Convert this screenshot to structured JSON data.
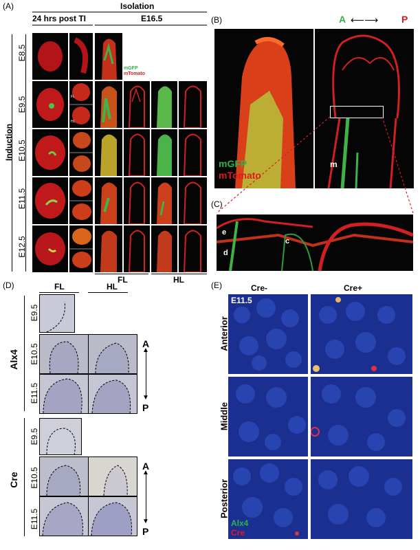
{
  "panels": {
    "A": {
      "label": "(A)",
      "isolation": "Isolation",
      "col_24hrs": "24 hrs post TI",
      "col_e165": "E16.5",
      "induction": "Induction",
      "rows": [
        "E8.5",
        "E9.5",
        "E10.5",
        "E11.5",
        "E12.5"
      ],
      "legend": {
        "mgfp": "mGFP",
        "mtomato": "mTomato"
      },
      "inset_labels": {
        "fl": "FL",
        "hl": "HL"
      },
      "bottom": {
        "fl": "FL",
        "hl": "HL"
      }
    },
    "B": {
      "label": "(B)",
      "axis_a": "A",
      "axis_p": "P",
      "legend": {
        "mgfp": "mGFP",
        "mtomato": "mTomato"
      },
      "annot_m": "m"
    },
    "C": {
      "label": "(C)",
      "annot_e": "e",
      "annot_d": "d",
      "annot_c": "c"
    },
    "D": {
      "label": "(D)",
      "col_fl": "FL",
      "col_hl": "HL",
      "gene_alx4": "Alx4",
      "gene_cre": "Cre",
      "rows_alx4": [
        "E9.5",
        "E10.5",
        "E11.5"
      ],
      "rows_cre": [
        "E9.5",
        "E10.5",
        "E11.5"
      ],
      "axis_a": "A",
      "axis_p": "P"
    },
    "E": {
      "label": "(E)",
      "col_minus": "Cre-",
      "col_plus": "Cre+",
      "stage": "E11.5",
      "rows": [
        "Anterior",
        "Middle",
        "Posterior"
      ],
      "legend": {
        "alx4": "Alx4",
        "cre": "Cre"
      }
    }
  },
  "colors": {
    "green": "#2db34a",
    "red": "#e0191e",
    "blue_stain": "#1a2f8f"
  }
}
